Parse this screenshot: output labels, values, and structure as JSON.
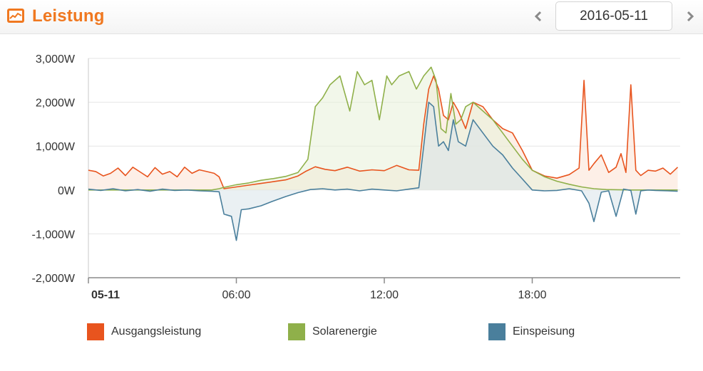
{
  "header": {
    "title": "Leistung",
    "icon": "chart-icon",
    "prev_icon": "chevron-left-icon",
    "next_icon": "chevron-right-icon",
    "date": "2016-05-11",
    "accent_color": "#f07820"
  },
  "chart_data": {
    "type": "area",
    "title": "Leistung",
    "xlabel": "",
    "ylabel": "",
    "x_ticks": [
      "05-11",
      "06:00",
      "12:00",
      "18:00"
    ],
    "xlim": [
      0,
      24
    ],
    "ylim": [
      -2000,
      3000
    ],
    "y_ticks": [
      3000,
      2000,
      1000,
      0,
      -1000,
      -2000
    ],
    "y_tick_labels": [
      "3,000W",
      "2,000W",
      "1,000W",
      "0W",
      "-1,000W",
      "-2,000W"
    ],
    "grid": true,
    "legend_position": "bottom",
    "series": [
      {
        "name": "Ausgangsleistung",
        "color": "#e8541e",
        "fill": "#fbe2d3",
        "x": [
          0,
          0.3,
          0.6,
          0.9,
          1.2,
          1.5,
          1.8,
          2.1,
          2.4,
          2.7,
          3.0,
          3.3,
          3.6,
          3.9,
          4.2,
          4.5,
          4.8,
          5.1,
          5.3,
          5.5,
          6.0,
          6.5,
          7.0,
          7.5,
          8.0,
          8.5,
          8.8,
          9.2,
          9.6,
          10.0,
          10.5,
          11.0,
          11.5,
          12.0,
          12.5,
          13.0,
          13.4,
          13.6,
          13.8,
          14.0,
          14.2,
          14.4,
          14.6,
          14.8,
          15.0,
          15.3,
          15.6,
          16.0,
          16.4,
          16.8,
          17.2,
          17.6,
          18.0,
          18.5,
          19.0,
          19.5,
          19.9,
          20.1,
          20.3,
          20.5,
          20.8,
          21.1,
          21.4,
          21.6,
          21.8,
          22.0,
          22.2,
          22.4,
          22.7,
          23.0,
          23.3,
          23.6,
          23.9
        ],
        "values": [
          450,
          420,
          320,
          380,
          500,
          330,
          520,
          410,
          300,
          510,
          360,
          420,
          300,
          520,
          380,
          460,
          420,
          380,
          300,
          30,
          70,
          110,
          150,
          190,
          230,
          320,
          420,
          530,
          470,
          440,
          520,
          430,
          460,
          440,
          560,
          460,
          450,
          1500,
          2300,
          2600,
          2300,
          1700,
          1600,
          2000,
          1800,
          1400,
          2000,
          1900,
          1600,
          1400,
          1300,
          900,
          450,
          320,
          270,
          350,
          500,
          2500,
          450,
          600,
          800,
          400,
          520,
          830,
          400,
          2400,
          450,
          330,
          450,
          430,
          500,
          360,
          520
        ],
        "marks": "line+area"
      },
      {
        "name": "Solarenergie",
        "color": "#8fb04a",
        "fill": "#e7f0d8",
        "x": [
          0,
          1,
          2,
          3,
          4,
          5,
          5.3,
          5.5,
          6.0,
          6.5,
          7.0,
          7.5,
          8.0,
          8.5,
          8.9,
          9.2,
          9.5,
          9.8,
          10.2,
          10.6,
          10.9,
          11.2,
          11.5,
          11.8,
          12.1,
          12.3,
          12.6,
          13.0,
          13.3,
          13.6,
          13.9,
          14.1,
          14.3,
          14.5,
          14.7,
          14.9,
          15.1,
          15.3,
          15.6,
          16.0,
          16.4,
          16.8,
          17.2,
          17.6,
          18.0,
          18.5,
          19.0,
          19.5,
          20.0,
          20.5,
          21.0,
          22.0,
          23.0,
          23.9
        ],
        "values": [
          0,
          0,
          0,
          0,
          0,
          0,
          30,
          60,
          120,
          160,
          220,
          260,
          310,
          400,
          700,
          1900,
          2100,
          2400,
          2600,
          1800,
          2700,
          2400,
          2500,
          1600,
          2600,
          2400,
          2600,
          2700,
          2300,
          2600,
          2800,
          2500,
          1400,
          1300,
          2200,
          1500,
          1600,
          1900,
          2000,
          1800,
          1600,
          1300,
          1000,
          700,
          450,
          300,
          200,
          130,
          70,
          30,
          10,
          0,
          0,
          0
        ],
        "marks": "line+area"
      },
      {
        "name": "Einspeisung",
        "color": "#4a7f9c",
        "fill": "#d9e3ea",
        "x": [
          0,
          0.5,
          1,
          1.5,
          2,
          2.5,
          3,
          3.5,
          4,
          4.5,
          5.0,
          5.3,
          5.5,
          5.8,
          6.0,
          6.2,
          6.5,
          7.0,
          7.5,
          8.0,
          8.5,
          9.0,
          9.5,
          10.0,
          10.5,
          11.0,
          11.5,
          12.0,
          12.5,
          13.0,
          13.4,
          13.6,
          13.8,
          14.0,
          14.2,
          14.4,
          14.6,
          14.8,
          15.0,
          15.3,
          15.6,
          16.0,
          16.4,
          16.8,
          17.2,
          17.6,
          18.0,
          18.5,
          19.0,
          19.5,
          20.0,
          20.3,
          20.5,
          20.8,
          21.1,
          21.4,
          21.7,
          22.0,
          22.2,
          22.4,
          22.7,
          23.0,
          23.5,
          23.9
        ],
        "values": [
          20,
          -10,
          30,
          -20,
          10,
          -30,
          20,
          -10,
          0,
          -20,
          -30,
          -40,
          -550,
          -600,
          -1150,
          -450,
          -430,
          -360,
          -250,
          -150,
          -60,
          10,
          30,
          0,
          20,
          -20,
          20,
          0,
          -20,
          20,
          50,
          1000,
          2000,
          1900,
          1000,
          1100,
          900,
          1600,
          1100,
          1000,
          1600,
          1300,
          1000,
          800,
          500,
          250,
          0,
          -20,
          -10,
          30,
          -20,
          -300,
          -720,
          -50,
          -20,
          -600,
          20,
          -10,
          -550,
          -20,
          0,
          -10,
          -20,
          -30
        ],
        "marks": "line+area"
      }
    ]
  }
}
